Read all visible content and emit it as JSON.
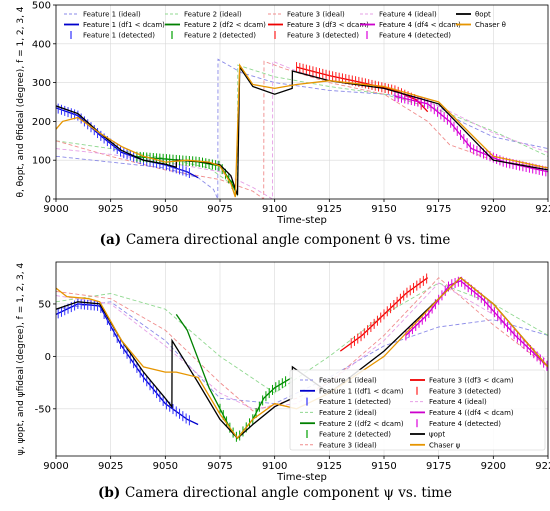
{
  "chart_data": [
    {
      "panel": "a",
      "type": "line",
      "xlabel": "Time-step",
      "ylabel": "θ, θopt, and θfideal (degree), f = 1, 2, 3, 4",
      "xlim": [
        9000,
        9225
      ],
      "ylim": [
        0,
        500
      ],
      "xticks": [
        9000,
        9025,
        9050,
        9075,
        9100,
        9125,
        9150,
        9175,
        9200,
        9225
      ],
      "yticks": [
        0,
        100,
        200,
        300,
        400,
        500
      ],
      "grid": true,
      "legend": {
        "placement": "top",
        "entries": [
          "Feature 1 (ideal)",
          "Feature 1 (df1 < dcam)",
          "Feature 1 (detected)",
          "Feature 2 (ideal)",
          "Feature 2 (df2 < dcam)",
          "Feature 2 (detected)",
          "Feature 3 (ideal)",
          "Feature 3 (df3 < dcam)",
          "Feature 3 (detected)",
          "Feature 4 (ideal)",
          "Feature 4 (df4 < dcam)",
          "Feature 4 (detected)",
          "θopt",
          "Chaser θ"
        ]
      },
      "caption": {
        "label": "(a)",
        "text": "Camera directional angle component θ vs. time"
      },
      "series": [
        {
          "name": "Feature 1 (ideal)",
          "style": "dashed",
          "color": "#8a8ae8",
          "x": [
            9000,
            9025,
            9050,
            9065,
            9072,
            9074,
            9074.1,
            9085,
            9100,
            9125,
            9150,
            9170,
            9185,
            9200,
            9225
          ],
          "y": [
            110,
            95,
            80,
            55,
            25,
            0,
            360,
            325,
            300,
            280,
            270,
            258,
            200,
            160,
            130
          ]
        },
        {
          "name": "Feature 2 (ideal)",
          "style": "dashed",
          "color": "#90d890",
          "x": [
            9000,
            9025,
            9050,
            9070,
            9080,
            9083,
            9083.1,
            9100,
            9125,
            9150,
            9175,
            9200,
            9225
          ],
          "y": [
            150,
            130,
            105,
            80,
            40,
            10,
            345,
            315,
            290,
            270,
            230,
            175,
            110
          ]
        },
        {
          "name": "Feature 3 (ideal)",
          "style": "dashed",
          "color": "#f08c8c",
          "x": [
            9000,
            9025,
            9050,
            9075,
            9090,
            9095,
            9095.1,
            9105,
            9125,
            9150,
            9170,
            9180,
            9200,
            9225
          ],
          "y": [
            150,
            110,
            75,
            50,
            20,
            0,
            355,
            335,
            300,
            270,
            200,
            140,
            100,
            80
          ]
        },
        {
          "name": "Feature 4 (ideal)",
          "style": "dashed",
          "color": "#e6a0e6",
          "x": [
            9000,
            9025,
            9050,
            9075,
            9090,
            9099,
            9099.1,
            9110,
            9125,
            9150,
            9175,
            9200,
            9225
          ],
          "y": [
            130,
            115,
            95,
            70,
            30,
            0,
            355,
            330,
            305,
            285,
            240,
            170,
            120
          ]
        },
        {
          "name": "Feature 1 (df1 < dcam)",
          "style": "solid",
          "color": "#0000cc",
          "x": [
            9000,
            9010,
            9020,
            9030,
            9040,
            9050,
            9060,
            9065
          ],
          "y": [
            235,
            215,
            165,
            120,
            100,
            88,
            70,
            55
          ]
        },
        {
          "name": "Feature 2 (df2 < dcam)",
          "style": "solid",
          "color": "#008000",
          "x": [
            9035,
            9050,
            9065,
            9075,
            9080,
            9083
          ],
          "y": [
            110,
            103,
            96,
            85,
            45,
            10
          ]
        },
        {
          "name": "Feature 3 (df3 < dcam)",
          "style": "solid",
          "color": "#ee0000",
          "x": [
            9110,
            9125,
            9140,
            9155,
            9165,
            9170
          ],
          "y": [
            340,
            318,
            300,
            280,
            255,
            225
          ]
        },
        {
          "name": "Feature 4 (df4 < dcam)",
          "style": "solid",
          "color": "#cc00cc",
          "x": [
            9155,
            9170,
            9180,
            9190,
            9205,
            9225
          ],
          "y": [
            265,
            245,
            200,
            130,
            95,
            70
          ]
        },
        {
          "name": "θopt",
          "style": "solid",
          "color": "#000000",
          "x": [
            9000,
            9010,
            9020,
            9030,
            9040,
            9050,
            9055,
            9055.1,
            9065,
            9075,
            9080,
            9083,
            9084,
            9090,
            9100,
            9108,
            9108.1,
            9125,
            9150,
            9175,
            9200,
            9225
          ],
          "y": [
            240,
            220,
            170,
            125,
            100,
            90,
            82,
            100,
            97,
            88,
            60,
            10,
            340,
            290,
            270,
            285,
            330,
            305,
            285,
            245,
            100,
            75
          ]
        },
        {
          "name": "Chaser θ",
          "style": "solid",
          "color": "#e69500",
          "x": [
            9000,
            9003,
            9010,
            9020,
            9030,
            9040,
            9050,
            9060,
            9070,
            9075,
            9080,
            9082,
            9084,
            9090,
            9100,
            9110,
            9125,
            9150,
            9175,
            9200,
            9225
          ],
          "y": [
            180,
            200,
            210,
            170,
            135,
            110,
            95,
            100,
            95,
            85,
            40,
            5,
            345,
            295,
            285,
            295,
            305,
            290,
            250,
            110,
            80
          ]
        }
      ],
      "markers": [
        {
          "name": "Feature 1 (detected)",
          "color": "#3030ff",
          "x_start": 9001,
          "x_end": 9062,
          "step": 1.5
        },
        {
          "name": "Feature 2 (detected)",
          "color": "#00a000",
          "x_start": 9037,
          "x_end": 9082,
          "step": 1.5
        },
        {
          "name": "Feature 3 (detected)",
          "color": "#ff2020",
          "x_start": 9110,
          "x_end": 9168,
          "step": 1.5
        },
        {
          "name": "Feature 4 (detected)",
          "color": "#dd00dd",
          "x_start": 9155,
          "x_end": 9225,
          "step": 1.5
        }
      ]
    },
    {
      "panel": "b",
      "type": "line",
      "xlabel": "Time-step",
      "ylabel": "ψ, ψopt, and ψfideal (degree), f = 1, 2, 3, 4",
      "xlim": [
        9000,
        9225
      ],
      "ylim": [
        -95,
        90
      ],
      "xticks": [
        9000,
        9025,
        9050,
        9075,
        9100,
        9125,
        9150,
        9175,
        9200,
        9225
      ],
      "yticks": [
        -50,
        0,
        50
      ],
      "grid": true,
      "legend": {
        "placement": "bottom",
        "entries": [
          "Feature 1 (ideal)",
          "Feature 1 ((df1 < dcam)",
          "Feature 1 (detected)",
          "Feature 2 (ideal)",
          "Feature 2 ((df2 < dcam)",
          "Feature 2 (detected)",
          "Feature 3 (ideal)",
          "Feature 3 ((df3 < dcam)",
          "Feature 3 (detected)",
          "Feature 4 (ideal)",
          "Feature 4 ((df4 < dcam)",
          "Feature 4 (detected)",
          "ψopt",
          "Chaser ψ"
        ]
      },
      "caption": {
        "label": "(b)",
        "text": "Camera directional angle component ψ vs. time"
      },
      "series": [
        {
          "name": "Feature 1 (ideal)",
          "style": "dashed",
          "color": "#8a8ae8",
          "x": [
            9000,
            9025,
            9050,
            9075,
            9100,
            9125,
            9150,
            9175,
            9200,
            9225
          ],
          "y": [
            45,
            52,
            15,
            -40,
            -45,
            -20,
            10,
            28,
            35,
            20
          ]
        },
        {
          "name": "Feature 2 (ideal)",
          "style": "dashed",
          "color": "#90d890",
          "x": [
            9000,
            9025,
            9050,
            9075,
            9100,
            9125,
            9150,
            9175,
            9200,
            9225
          ],
          "y": [
            52,
            60,
            45,
            0,
            -35,
            0,
            40,
            70,
            50,
            20
          ]
        },
        {
          "name": "Feature 3 (ideal)",
          "style": "dashed",
          "color": "#f08c8c",
          "x": [
            9000,
            9025,
            9050,
            9075,
            9090,
            9110,
            9125,
            9150,
            9175,
            9200,
            9225
          ],
          "y": [
            62,
            55,
            25,
            -25,
            -52,
            -40,
            -25,
            20,
            75,
            30,
            -10
          ]
        },
        {
          "name": "Feature 4 (ideal)",
          "style": "dashed",
          "color": "#e6a0e6",
          "x": [
            9000,
            9025,
            9050,
            9075,
            9090,
            9110,
            9125,
            9150,
            9175,
            9200,
            9225
          ],
          "y": [
            58,
            50,
            10,
            -35,
            -50,
            -45,
            -25,
            15,
            70,
            40,
            -5
          ]
        },
        {
          "name": "Feature 1 ((df1 < dcam)",
          "style": "solid",
          "color": "#0000cc",
          "x": [
            9000,
            9010,
            9020,
            9030,
            9040,
            9050,
            9060,
            9065
          ],
          "y": [
            40,
            50,
            48,
            10,
            -20,
            -45,
            -60,
            -65
          ]
        },
        {
          "name": "Feature 2 ((df2 < dcam)",
          "style": "solid",
          "color": "#008000",
          "x": [
            9055,
            9060,
            9070,
            9080,
            9083,
            9090,
            9095,
            9100,
            9108
          ],
          "y": [
            40,
            25,
            -30,
            -70,
            -78,
            -60,
            -40,
            -30,
            -20
          ]
        },
        {
          "name": "Feature 3 ((df3 < dcam)",
          "style": "solid",
          "color": "#ee0000",
          "x": [
            9130,
            9140,
            9150,
            9160,
            9170
          ],
          "y": [
            5,
            20,
            40,
            60,
            75
          ]
        },
        {
          "name": "Feature 4 ((df4 < dcam)",
          "style": "solid",
          "color": "#cc00cc",
          "x": [
            9160,
            9170,
            9180,
            9185,
            9195,
            9210,
            9225
          ],
          "y": [
            20,
            40,
            68,
            72,
            55,
            20,
            -10
          ]
        },
        {
          "name": "ψopt",
          "style": "solid",
          "color": "#000000",
          "x": [
            9000,
            9010,
            9020,
            9030,
            9040,
            9050,
            9053,
            9053.1,
            9065,
            9075,
            9083,
            9090,
            9100,
            9108,
            9108.1,
            9125,
            9150,
            9175,
            9185,
            9200,
            9225
          ],
          "y": [
            45,
            52,
            50,
            15,
            -15,
            -40,
            -48,
            15,
            -25,
            -60,
            -78,
            -65,
            -48,
            -40,
            -10,
            -35,
            5,
            55,
            75,
            50,
            -10
          ]
        },
        {
          "name": "Chaser ψ",
          "style": "solid",
          "color": "#e69500",
          "x": [
            9000,
            9005,
            9015,
            9020,
            9030,
            9040,
            9050,
            9055,
            9065,
            9075,
            9083,
            9090,
            9100,
            9110,
            9125,
            9150,
            9175,
            9185,
            9200,
            9225
          ],
          "y": [
            65,
            57,
            55,
            52,
            15,
            -10,
            -15,
            -15,
            -20,
            -55,
            -78,
            -60,
            -45,
            -50,
            -35,
            0,
            55,
            75,
            50,
            -10
          ]
        }
      ],
      "markers": [
        {
          "name": "Feature 1 (detected)",
          "color": "#3030ff",
          "x_start": 9001,
          "x_end": 9062,
          "step": 1.5
        },
        {
          "name": "Feature 2 (detected)",
          "color": "#00a000",
          "x_start": 9075,
          "x_end": 9105,
          "step": 1.5
        },
        {
          "name": "Feature 3 (detected)",
          "color": "#ff2020",
          "x_start": 9135,
          "x_end": 9170,
          "step": 1.5
        },
        {
          "name": "Feature 4 (detected)",
          "color": "#dd00dd",
          "x_start": 9160,
          "x_end": 9225,
          "step": 1.5
        }
      ]
    }
  ]
}
